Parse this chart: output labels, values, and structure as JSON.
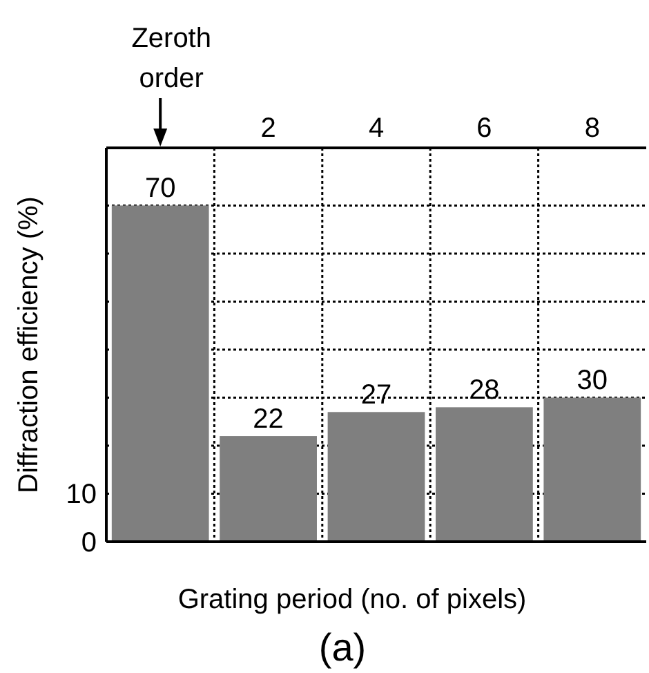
{
  "chart_data": {
    "type": "bar",
    "xlabel": "Grating period (no. of pixels)",
    "ylabel": "Diffraction efficiency (%)",
    "categories": [
      null,
      "2",
      "4",
      "6",
      "8"
    ],
    "values": [
      70,
      22,
      27,
      28,
      30
    ],
    "color": "#7f7f7f",
    "ylim": [
      0,
      82
    ],
    "yticks": [
      0,
      10,
      {
        "value": 20,
        "label": null
      },
      {
        "value": 30,
        "label": null
      },
      {
        "value": 40,
        "label": null
      },
      {
        "value": 50,
        "label": null
      },
      {
        "value": 60,
        "label": null
      },
      {
        "value": 70,
        "label": null
      }
    ],
    "grid": true,
    "data_labels": true,
    "annotations": [
      "Zeroth order",
      "(a)"
    ]
  }
}
